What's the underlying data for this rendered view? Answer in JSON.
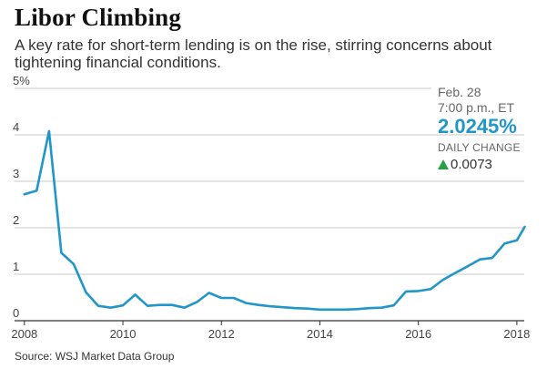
{
  "header": {
    "title": "Libor Climbing",
    "subtitle": "A key rate for short-term lending is on the rise, stirring concerns about tightening financial conditions."
  },
  "annotation": {
    "date": "Feb. 28",
    "time": "7:00 p.m., ET",
    "value": "2.0245%",
    "change_label": "DAILY CHANGE",
    "change_value": "0.0073",
    "direction": "up"
  },
  "source": "Source: WSJ Market Data Group",
  "colors": {
    "line": "#2196c9",
    "up": "#2aa046",
    "grid": "#999999",
    "axis": "#333333"
  },
  "chart_data": {
    "type": "line",
    "title": "Libor Climbing",
    "xlabel": "",
    "ylabel": "",
    "xlim": [
      2007.8,
      2018.15
    ],
    "ylim": [
      0,
      5
    ],
    "x_ticks": [
      2008,
      2010,
      2012,
      2014,
      2016,
      2018
    ],
    "y_ticks": [
      0,
      1,
      2,
      3,
      4,
      5
    ],
    "y_tick_labels": [
      "0",
      "1",
      "2",
      "3",
      "4",
      "5%"
    ],
    "grid": true,
    "series": [
      {
        "x": [
          2008.0,
          2008.25,
          2008.5,
          2008.75,
          2009.0,
          2009.25,
          2009.5,
          2009.75,
          2010.0,
          2010.25,
          2010.5,
          2010.75,
          2011.0,
          2011.25,
          2011.5,
          2011.75,
          2012.0,
          2012.25,
          2012.5,
          2012.75,
          2013.0,
          2013.25,
          2013.5,
          2013.75,
          2014.0,
          2014.25,
          2014.5,
          2014.75,
          2015.0,
          2015.25,
          2015.5,
          2015.75,
          2016.0,
          2016.25,
          2016.5,
          2016.75,
          2017.0,
          2017.25,
          2017.5,
          2017.75,
          2018.0,
          2018.16
        ],
        "values": [
          2.72,
          2.8,
          4.08,
          1.46,
          1.22,
          0.61,
          0.32,
          0.28,
          0.33,
          0.56,
          0.32,
          0.34,
          0.34,
          0.28,
          0.4,
          0.6,
          0.49,
          0.49,
          0.38,
          0.34,
          0.31,
          0.29,
          0.27,
          0.26,
          0.24,
          0.24,
          0.24,
          0.25,
          0.27,
          0.28,
          0.33,
          0.63,
          0.64,
          0.68,
          0.88,
          1.03,
          1.17,
          1.32,
          1.35,
          1.66,
          1.73,
          2.02
        ]
      }
    ]
  }
}
